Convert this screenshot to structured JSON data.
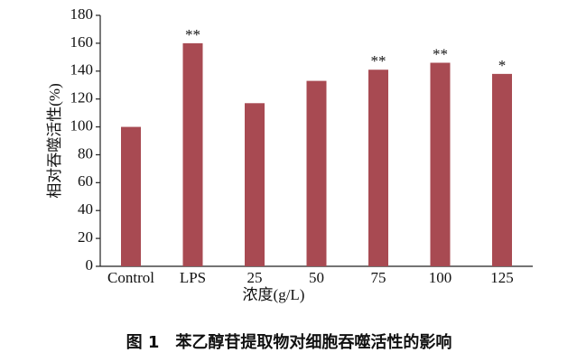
{
  "chart_data": {
    "type": "bar",
    "caption": "图 1　苯乙醇苷提取物对细胞吞噬活性的影响",
    "x_label": "浓度(g/L)",
    "y_label": "相对吞噬活性(%)",
    "categories": [
      "Control",
      "LPS",
      "25",
      "50",
      "75",
      "100",
      "125"
    ],
    "values": [
      100,
      160,
      117,
      133,
      141,
      146,
      138
    ],
    "annotations": [
      null,
      "**",
      null,
      null,
      "**",
      "**",
      "*"
    ],
    "color": "#a84a52",
    "ylim": [
      0,
      180
    ],
    "yticks": [
      0,
      20,
      40,
      60,
      80,
      100,
      120,
      140,
      160,
      180
    ]
  }
}
